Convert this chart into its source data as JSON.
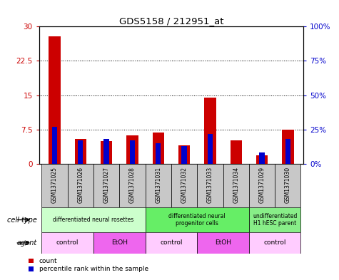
{
  "title": "GDS5158 / 212951_at",
  "samples": [
    "GSM1371025",
    "GSM1371026",
    "GSM1371027",
    "GSM1371028",
    "GSM1371031",
    "GSM1371032",
    "GSM1371033",
    "GSM1371034",
    "GSM1371029",
    "GSM1371030"
  ],
  "red_counts": [
    27.8,
    5.5,
    5.0,
    6.2,
    6.8,
    4.0,
    14.5,
    5.2,
    1.8,
    7.5
  ],
  "blue_percentiles": [
    27,
    17,
    18,
    17,
    15,
    13,
    22,
    0,
    8,
    18
  ],
  "ylim_left": [
    0,
    30
  ],
  "ylim_right": [
    0,
    100
  ],
  "yticks_left": [
    0,
    7.5,
    15,
    22.5,
    30
  ],
  "yticks_right": [
    0,
    25,
    50,
    75,
    100
  ],
  "ytick_labels_left": [
    "0",
    "7.5",
    "15",
    "22.5",
    "30"
  ],
  "ytick_labels_right": [
    "0%",
    "25%",
    "50%",
    "75%",
    "100%"
  ],
  "cell_type_groups": [
    {
      "label": "differentiated neural rosettes",
      "start": 0,
      "end": 3,
      "color": "#ccffcc"
    },
    {
      "label": "differentiated neural\nprogenitor cells",
      "start": 4,
      "end": 7,
      "color": "#66ee66"
    },
    {
      "label": "undifferentiated\nH1 hESC parent",
      "start": 8,
      "end": 9,
      "color": "#88ee88"
    }
  ],
  "agent_groups": [
    {
      "label": "control",
      "start": 0,
      "end": 1,
      "color": "#ffccff"
    },
    {
      "label": "EtOH",
      "start": 2,
      "end": 3,
      "color": "#ee66ee"
    },
    {
      "label": "control",
      "start": 4,
      "end": 5,
      "color": "#ffccff"
    },
    {
      "label": "EtOH",
      "start": 6,
      "end": 7,
      "color": "#ee66ee"
    },
    {
      "label": "control",
      "start": 8,
      "end": 9,
      "color": "#ffccff"
    }
  ],
  "bar_color_red": "#cc0000",
  "bar_color_blue": "#0000cc",
  "cell_type_label": "cell type",
  "agent_label": "agent",
  "legend_count": "count",
  "legend_percentile": "percentile rank within the sample",
  "sample_bg_color": "#c8c8c8"
}
